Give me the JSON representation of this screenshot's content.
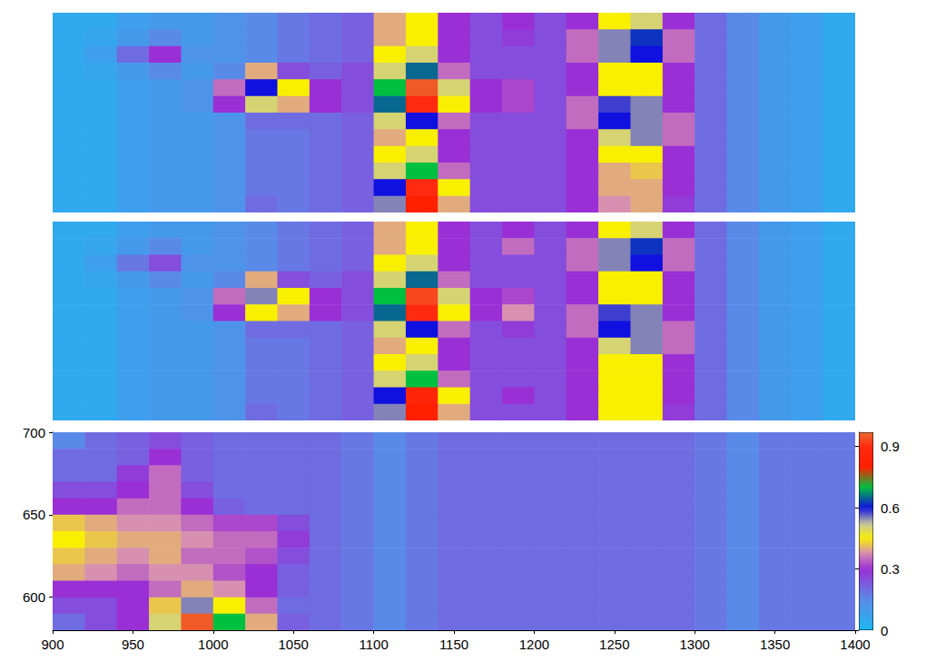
{
  "chart_data": [
    {
      "type": "heatmap",
      "tick_labels": false,
      "xlim": [
        900,
        1400
      ],
      "ylim": [
        580,
        700
      ],
      "x": [
        910,
        930,
        950,
        970,
        990,
        1010,
        1030,
        1050,
        1070,
        1090,
        1110,
        1130,
        1150,
        1170,
        1190,
        1210,
        1230,
        1250,
        1270,
        1290,
        1310,
        1330,
        1350,
        1370,
        1390
      ],
      "y": [
        695,
        685,
        675,
        665,
        655,
        645,
        635,
        625,
        615,
        605,
        595,
        585
      ],
      "z": [
        [
          0.05,
          0.05,
          0.08,
          0.1,
          0.1,
          0.12,
          0.15,
          0.18,
          0.2,
          0.22,
          0.4,
          0.45,
          0.3,
          0.25,
          0.3,
          0.25,
          0.3,
          0.45,
          0.5,
          0.3,
          0.2,
          0.15,
          0.1,
          0.08,
          0.05
        ],
        [
          0.05,
          0.06,
          0.1,
          0.15,
          0.1,
          0.12,
          0.15,
          0.18,
          0.2,
          0.22,
          0.4,
          0.45,
          0.3,
          0.25,
          0.28,
          0.25,
          0.35,
          0.55,
          0.62,
          0.35,
          0.2,
          0.15,
          0.1,
          0.08,
          0.05
        ],
        [
          0.05,
          0.08,
          0.2,
          0.3,
          0.12,
          0.12,
          0.15,
          0.18,
          0.2,
          0.22,
          0.45,
          0.5,
          0.3,
          0.25,
          0.25,
          0.25,
          0.35,
          0.55,
          0.6,
          0.35,
          0.2,
          0.15,
          0.1,
          0.08,
          0.05
        ],
        [
          0.05,
          0.06,
          0.1,
          0.15,
          0.1,
          0.15,
          0.4,
          0.25,
          0.22,
          0.25,
          0.5,
          0.65,
          0.35,
          0.25,
          0.25,
          0.25,
          0.3,
          0.45,
          0.45,
          0.3,
          0.2,
          0.15,
          0.1,
          0.08,
          0.05
        ],
        [
          0.05,
          0.05,
          0.08,
          0.1,
          0.12,
          0.35,
          0.6,
          0.45,
          0.3,
          0.25,
          0.7,
          0.95,
          0.5,
          0.3,
          0.32,
          0.25,
          0.3,
          0.45,
          0.45,
          0.3,
          0.2,
          0.15,
          0.1,
          0.08,
          0.05
        ],
        [
          0.05,
          0.05,
          0.08,
          0.1,
          0.12,
          0.3,
          0.5,
          0.4,
          0.3,
          0.25,
          0.65,
          0.9,
          0.45,
          0.3,
          0.32,
          0.25,
          0.35,
          0.58,
          0.55,
          0.3,
          0.2,
          0.15,
          0.1,
          0.08,
          0.05
        ],
        [
          0.05,
          0.05,
          0.08,
          0.1,
          0.1,
          0.12,
          0.2,
          0.2,
          0.2,
          0.22,
          0.5,
          0.6,
          0.35,
          0.25,
          0.25,
          0.25,
          0.35,
          0.6,
          0.55,
          0.35,
          0.2,
          0.15,
          0.1,
          0.08,
          0.05
        ],
        [
          0.05,
          0.05,
          0.08,
          0.1,
          0.1,
          0.12,
          0.18,
          0.18,
          0.2,
          0.22,
          0.4,
          0.45,
          0.3,
          0.25,
          0.25,
          0.25,
          0.3,
          0.5,
          0.55,
          0.35,
          0.2,
          0.15,
          0.1,
          0.08,
          0.05
        ],
        [
          0.05,
          0.05,
          0.08,
          0.1,
          0.1,
          0.12,
          0.18,
          0.18,
          0.2,
          0.22,
          0.45,
          0.5,
          0.3,
          0.25,
          0.25,
          0.25,
          0.3,
          0.45,
          0.45,
          0.3,
          0.2,
          0.15,
          0.1,
          0.08,
          0.05
        ],
        [
          0.05,
          0.05,
          0.08,
          0.1,
          0.1,
          0.12,
          0.18,
          0.18,
          0.2,
          0.22,
          0.5,
          0.7,
          0.35,
          0.25,
          0.25,
          0.25,
          0.3,
          0.4,
          0.42,
          0.3,
          0.2,
          0.15,
          0.1,
          0.08,
          0.05
        ],
        [
          0.05,
          0.05,
          0.08,
          0.1,
          0.1,
          0.12,
          0.18,
          0.18,
          0.2,
          0.22,
          0.6,
          0.9,
          0.45,
          0.25,
          0.25,
          0.25,
          0.3,
          0.4,
          0.4,
          0.3,
          0.2,
          0.15,
          0.1,
          0.08,
          0.05
        ],
        [
          0.05,
          0.05,
          0.08,
          0.1,
          0.1,
          0.12,
          0.2,
          0.18,
          0.2,
          0.22,
          0.55,
          0.8,
          0.4,
          0.25,
          0.25,
          0.25,
          0.3,
          0.38,
          0.4,
          0.28,
          0.2,
          0.15,
          0.1,
          0.08,
          0.05
        ]
      ]
    },
    {
      "type": "heatmap",
      "tick_labels": false,
      "xlim": [
        900,
        1400
      ],
      "ylim": [
        580,
        700
      ],
      "x": [
        910,
        930,
        950,
        970,
        990,
        1010,
        1030,
        1050,
        1070,
        1090,
        1110,
        1130,
        1150,
        1170,
        1190,
        1210,
        1230,
        1250,
        1270,
        1290,
        1310,
        1330,
        1350,
        1370,
        1390
      ],
      "y": [
        695,
        685,
        675,
        665,
        655,
        645,
        635,
        625,
        615,
        605,
        595,
        585
      ],
      "z": [
        [
          0.05,
          0.05,
          0.08,
          0.1,
          0.1,
          0.12,
          0.15,
          0.18,
          0.2,
          0.22,
          0.4,
          0.45,
          0.3,
          0.25,
          0.3,
          0.25,
          0.3,
          0.45,
          0.5,
          0.3,
          0.2,
          0.15,
          0.1,
          0.08,
          0.05
        ],
        [
          0.05,
          0.06,
          0.1,
          0.15,
          0.1,
          0.12,
          0.15,
          0.18,
          0.2,
          0.22,
          0.4,
          0.45,
          0.3,
          0.25,
          0.35,
          0.25,
          0.35,
          0.55,
          0.62,
          0.35,
          0.2,
          0.15,
          0.1,
          0.08,
          0.05
        ],
        [
          0.05,
          0.08,
          0.18,
          0.25,
          0.12,
          0.12,
          0.15,
          0.18,
          0.2,
          0.22,
          0.45,
          0.5,
          0.3,
          0.25,
          0.25,
          0.25,
          0.35,
          0.55,
          0.6,
          0.35,
          0.2,
          0.15,
          0.1,
          0.08,
          0.05
        ],
        [
          0.05,
          0.06,
          0.1,
          0.15,
          0.1,
          0.15,
          0.4,
          0.25,
          0.22,
          0.25,
          0.5,
          0.65,
          0.35,
          0.25,
          0.25,
          0.25,
          0.3,
          0.45,
          0.45,
          0.3,
          0.2,
          0.15,
          0.1,
          0.08,
          0.05
        ],
        [
          0.05,
          0.05,
          0.08,
          0.1,
          0.12,
          0.35,
          0.55,
          0.45,
          0.3,
          0.25,
          0.7,
          0.93,
          0.5,
          0.3,
          0.32,
          0.25,
          0.3,
          0.45,
          0.45,
          0.3,
          0.2,
          0.15,
          0.1,
          0.08,
          0.05
        ],
        [
          0.05,
          0.05,
          0.08,
          0.1,
          0.12,
          0.3,
          0.45,
          0.4,
          0.3,
          0.25,
          0.65,
          0.9,
          0.45,
          0.3,
          0.38,
          0.25,
          0.35,
          0.58,
          0.55,
          0.3,
          0.2,
          0.15,
          0.1,
          0.08,
          0.05
        ],
        [
          0.05,
          0.05,
          0.08,
          0.1,
          0.1,
          0.12,
          0.2,
          0.2,
          0.2,
          0.22,
          0.5,
          0.6,
          0.35,
          0.25,
          0.28,
          0.25,
          0.35,
          0.6,
          0.55,
          0.35,
          0.2,
          0.15,
          0.1,
          0.08,
          0.05
        ],
        [
          0.05,
          0.05,
          0.08,
          0.1,
          0.1,
          0.12,
          0.18,
          0.18,
          0.2,
          0.22,
          0.4,
          0.45,
          0.3,
          0.25,
          0.25,
          0.25,
          0.3,
          0.5,
          0.55,
          0.35,
          0.2,
          0.15,
          0.1,
          0.08,
          0.05
        ],
        [
          0.05,
          0.05,
          0.08,
          0.1,
          0.1,
          0.12,
          0.18,
          0.18,
          0.2,
          0.22,
          0.45,
          0.5,
          0.3,
          0.25,
          0.25,
          0.25,
          0.3,
          0.45,
          0.45,
          0.3,
          0.2,
          0.15,
          0.1,
          0.08,
          0.05
        ],
        [
          0.05,
          0.05,
          0.08,
          0.1,
          0.1,
          0.12,
          0.18,
          0.18,
          0.2,
          0.22,
          0.5,
          0.7,
          0.35,
          0.25,
          0.25,
          0.25,
          0.3,
          0.45,
          0.45,
          0.3,
          0.2,
          0.15,
          0.1,
          0.08,
          0.05
        ],
        [
          0.05,
          0.05,
          0.08,
          0.1,
          0.1,
          0.12,
          0.18,
          0.18,
          0.2,
          0.22,
          0.6,
          0.85,
          0.45,
          0.25,
          0.3,
          0.25,
          0.3,
          0.45,
          0.45,
          0.3,
          0.2,
          0.15,
          0.1,
          0.08,
          0.05
        ],
        [
          0.05,
          0.05,
          0.08,
          0.1,
          0.1,
          0.12,
          0.2,
          0.18,
          0.2,
          0.22,
          0.55,
          0.8,
          0.4,
          0.25,
          0.25,
          0.25,
          0.3,
          0.45,
          0.45,
          0.28,
          0.2,
          0.15,
          0.1,
          0.08,
          0.05
        ]
      ]
    },
    {
      "type": "heatmap",
      "xlim": [
        900,
        1400
      ],
      "ylim": [
        580,
        700
      ],
      "xticks": [
        900,
        950,
        1000,
        1050,
        1100,
        1150,
        1200,
        1250,
        1300,
        1350,
        1400
      ],
      "yticks": [
        600,
        650,
        700
      ],
      "x": [
        910,
        930,
        950,
        970,
        990,
        1010,
        1030,
        1050,
        1070,
        1090,
        1110,
        1130,
        1150,
        1170,
        1190,
        1210,
        1230,
        1250,
        1270,
        1290,
        1310,
        1330,
        1350,
        1370,
        1390
      ],
      "y": [
        695,
        685,
        675,
        665,
        655,
        645,
        635,
        625,
        615,
        605,
        595,
        585
      ],
      "z": [
        [
          0.15,
          0.2,
          0.22,
          0.25,
          0.22,
          0.2,
          0.2,
          0.2,
          0.2,
          0.18,
          0.15,
          0.18,
          0.2,
          0.2,
          0.2,
          0.2,
          0.2,
          0.2,
          0.2,
          0.2,
          0.18,
          0.15,
          0.18,
          0.18,
          0.18
        ],
        [
          0.2,
          0.2,
          0.22,
          0.3,
          0.22,
          0.2,
          0.2,
          0.2,
          0.2,
          0.18,
          0.15,
          0.18,
          0.2,
          0.2,
          0.2,
          0.2,
          0.2,
          0.2,
          0.2,
          0.2,
          0.18,
          0.15,
          0.18,
          0.18,
          0.18
        ],
        [
          0.2,
          0.2,
          0.28,
          0.35,
          0.22,
          0.2,
          0.2,
          0.2,
          0.2,
          0.18,
          0.15,
          0.18,
          0.2,
          0.2,
          0.2,
          0.2,
          0.2,
          0.2,
          0.2,
          0.2,
          0.18,
          0.15,
          0.18,
          0.18,
          0.18
        ],
        [
          0.25,
          0.25,
          0.3,
          0.35,
          0.25,
          0.2,
          0.2,
          0.2,
          0.2,
          0.18,
          0.15,
          0.18,
          0.2,
          0.2,
          0.2,
          0.2,
          0.2,
          0.2,
          0.2,
          0.2,
          0.18,
          0.15,
          0.18,
          0.18,
          0.18
        ],
        [
          0.3,
          0.3,
          0.35,
          0.35,
          0.3,
          0.22,
          0.2,
          0.2,
          0.2,
          0.18,
          0.15,
          0.18,
          0.2,
          0.2,
          0.2,
          0.2,
          0.2,
          0.2,
          0.2,
          0.2,
          0.18,
          0.15,
          0.18,
          0.18,
          0.18
        ],
        [
          0.42,
          0.4,
          0.38,
          0.38,
          0.35,
          0.32,
          0.32,
          0.25,
          0.2,
          0.18,
          0.15,
          0.18,
          0.2,
          0.2,
          0.2,
          0.2,
          0.2,
          0.2,
          0.2,
          0.2,
          0.18,
          0.15,
          0.18,
          0.18,
          0.18
        ],
        [
          0.45,
          0.42,
          0.4,
          0.4,
          0.38,
          0.35,
          0.35,
          0.28,
          0.2,
          0.18,
          0.15,
          0.18,
          0.2,
          0.2,
          0.2,
          0.2,
          0.2,
          0.2,
          0.2,
          0.2,
          0.18,
          0.15,
          0.18,
          0.18,
          0.18
        ],
        [
          0.42,
          0.4,
          0.38,
          0.4,
          0.35,
          0.35,
          0.33,
          0.25,
          0.2,
          0.18,
          0.15,
          0.18,
          0.2,
          0.2,
          0.2,
          0.2,
          0.2,
          0.2,
          0.2,
          0.2,
          0.18,
          0.15,
          0.18,
          0.18,
          0.18
        ],
        [
          0.4,
          0.38,
          0.35,
          0.38,
          0.38,
          0.33,
          0.3,
          0.22,
          0.2,
          0.18,
          0.15,
          0.18,
          0.2,
          0.2,
          0.2,
          0.2,
          0.2,
          0.2,
          0.2,
          0.2,
          0.18,
          0.15,
          0.18,
          0.18,
          0.18
        ],
        [
          0.3,
          0.3,
          0.3,
          0.35,
          0.4,
          0.38,
          0.3,
          0.22,
          0.2,
          0.18,
          0.15,
          0.18,
          0.2,
          0.2,
          0.2,
          0.2,
          0.2,
          0.2,
          0.2,
          0.2,
          0.18,
          0.15,
          0.18,
          0.18,
          0.18
        ],
        [
          0.25,
          0.25,
          0.3,
          0.42,
          0.55,
          0.45,
          0.35,
          0.2,
          0.2,
          0.18,
          0.15,
          0.18,
          0.2,
          0.2,
          0.2,
          0.2,
          0.2,
          0.2,
          0.2,
          0.2,
          0.18,
          0.15,
          0.18,
          0.18,
          0.18
        ],
        [
          0.2,
          0.25,
          0.3,
          0.5,
          0.95,
          0.7,
          0.4,
          0.22,
          0.2,
          0.18,
          0.15,
          0.18,
          0.2,
          0.2,
          0.2,
          0.2,
          0.2,
          0.2,
          0.2,
          0.2,
          0.18,
          0.15,
          0.18,
          0.18,
          0.18
        ]
      ],
      "colorbar": {
        "range": [
          0,
          0.97
        ],
        "ticks": [
          0,
          0.3,
          0.6,
          0.9
        ]
      }
    }
  ]
}
